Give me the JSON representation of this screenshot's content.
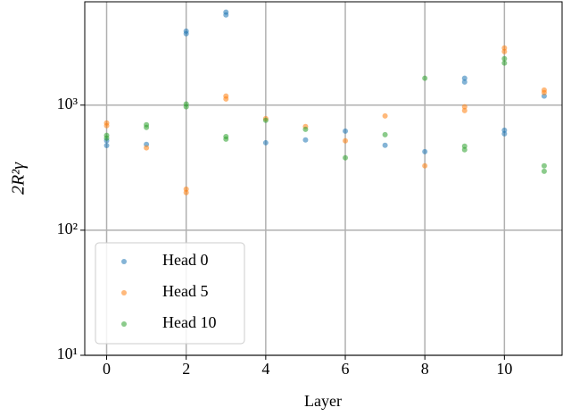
{
  "chart_data": {
    "type": "scatter",
    "xlabel": "Layer",
    "ylabel": "2R²γ",
    "xlim": [
      -0.55,
      11.45
    ],
    "xticks": [
      0,
      2,
      4,
      6,
      8,
      10
    ],
    "ylim": [
      10,
      6700
    ],
    "yscale": "log",
    "yticks": [
      {
        "value": 10,
        "label": "10¹"
      },
      {
        "value": 100,
        "label": "10²"
      },
      {
        "value": 1000,
        "label": "10³"
      }
    ],
    "grid": true,
    "legend": "lower left",
    "series": [
      {
        "name": "Head 0",
        "color": "#1f77b4",
        "x": [
          0,
          0,
          1,
          2,
          2,
          3,
          3,
          4,
          5,
          6,
          7,
          8,
          9,
          9,
          10,
          10,
          11
        ],
        "values": [
          475,
          520,
          485,
          3900,
          3720,
          5530,
          5260,
          500,
          527,
          620,
          477,
          425,
          1640,
          1530,
          630,
          590,
          1180
        ]
      },
      {
        "name": "Head 5",
        "color": "#ff7f0e",
        "x": [
          0,
          0,
          1,
          2,
          2,
          3,
          3,
          4,
          5,
          6,
          7,
          8,
          9,
          9,
          10,
          10,
          11,
          11
        ],
        "values": [
          720,
          685,
          455,
          213,
          200,
          1180,
          1120,
          780,
          674,
          518,
          820,
          327,
          970,
          905,
          2860,
          2680,
          1320,
          1260
        ]
      },
      {
        "name": "Head 10",
        "color": "#2ca02c",
        "x": [
          0,
          0,
          1,
          1,
          2,
          2,
          3,
          3,
          4,
          5,
          6,
          7,
          8,
          9,
          9,
          10,
          10,
          11,
          11
        ],
        "values": [
          573,
          545,
          696,
          663,
          1020,
          970,
          560,
          535,
          756,
          641,
          379,
          580,
          1640,
          470,
          440,
          2350,
          2170,
          327,
          296
        ]
      }
    ]
  }
}
